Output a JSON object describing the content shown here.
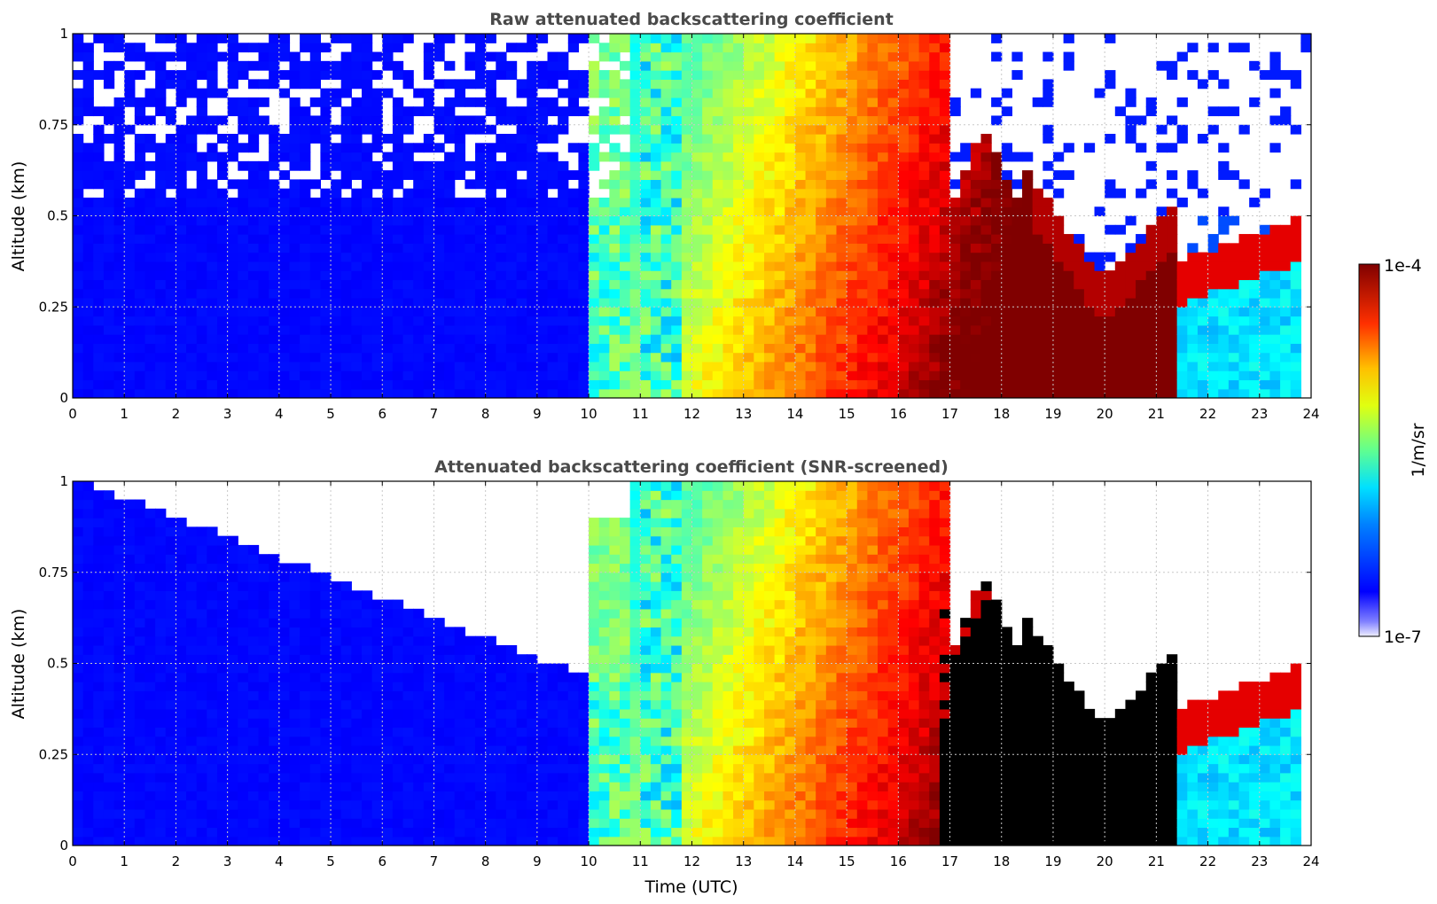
{
  "chart_data": [
    {
      "type": "heatmap",
      "title": "Raw attenuated backscattering coefficient",
      "xlabel": "",
      "ylabel": "Altitude (km)",
      "xlim": [
        0,
        24
      ],
      "ylim": [
        0,
        1
      ],
      "xticks": [
        "0",
        "1",
        "2",
        "3",
        "4",
        "5",
        "6",
        "7",
        "8",
        "9",
        "10",
        "11",
        "12",
        "13",
        "14",
        "15",
        "16",
        "17",
        "18",
        "19",
        "20",
        "21",
        "22",
        "23",
        "24"
      ],
      "yticks": [
        "0",
        "0.25",
        "0.5",
        "0.75",
        "1"
      ],
      "grid": true,
      "screened": false
    },
    {
      "type": "heatmap",
      "title": "Attenuated backscattering coefficient (SNR-screened)",
      "xlabel": "Time (UTC)",
      "ylabel": "Altitude (km)",
      "xlim": [
        0,
        24
      ],
      "ylim": [
        0,
        1
      ],
      "xticks": [
        "0",
        "1",
        "2",
        "3",
        "4",
        "5",
        "6",
        "7",
        "8",
        "9",
        "10",
        "11",
        "12",
        "13",
        "14",
        "15",
        "16",
        "17",
        "18",
        "19",
        "20",
        "21",
        "22",
        "23",
        "24"
      ],
      "yticks": [
        "0",
        "0.25",
        "0.5",
        "0.75",
        "1"
      ],
      "grid": true,
      "screened": true
    }
  ],
  "colorbar": {
    "label": "1/m/sr",
    "max_label": "1e-4",
    "min_label": "1e-7",
    "colormap": "jet",
    "scale": "log"
  }
}
